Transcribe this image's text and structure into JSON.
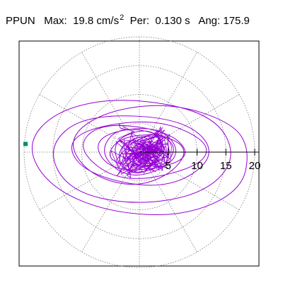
{
  "header": {
    "station": "PPUN",
    "max_label": "Max:",
    "max_value": "19.8 cm/s",
    "max_unit_exp": "2",
    "per_label": "Per:",
    "per_value": "0.130 s",
    "ang_label": "Ang:",
    "ang_value": "175.9"
  },
  "chart_data": {
    "type": "line",
    "subtype": "polar-particle-motion",
    "radial_ticks": [
      "5",
      "10",
      "15",
      "20"
    ],
    "radial_tick_values": [
      5,
      10,
      15,
      20
    ],
    "r_max": 20,
    "angular_grid_step_deg": 30,
    "grid": true,
    "peak_marker": {
      "radius": 19.8,
      "angle_deg": 175.9
    },
    "path_xy": [
      [
        0,
        0
      ],
      [
        1.6,
        0.8
      ],
      [
        -2.4,
        2.2
      ],
      [
        0.9,
        -2.8
      ],
      [
        -1.8,
        -1.3
      ],
      [
        2.9,
        1.7
      ],
      [
        -0.6,
        3.1
      ],
      [
        -3.2,
        -0.4
      ],
      [
        1.2,
        -3.4
      ],
      [
        3.6,
        0.5
      ],
      [
        -2.1,
        2.7
      ],
      [
        -4.2,
        -1.6
      ],
      [
        0.3,
        -4.6
      ],
      [
        4.8,
        1.1
      ],
      [
        1.5,
        4.4
      ],
      [
        -5.1,
        1.8
      ],
      [
        -2.6,
        -4.2
      ],
      [
        5.3,
        -2.2
      ],
      [
        6.4,
        2.3
      ],
      [
        -3.5,
        4.8
      ],
      [
        -7.2,
        -0.3
      ],
      [
        -1.2,
        -5.1
      ],
      [
        7.8,
        -0.9
      ],
      [
        3.4,
        4.9
      ],
      [
        -8.6,
        2.7
      ],
      [
        -4.8,
        -3.9
      ],
      [
        9.2,
        -1.7
      ],
      [
        6.1,
        3.4
      ],
      [
        -6.6,
        5.3
      ],
      [
        -11.2,
        0.6
      ],
      [
        -3.1,
        -5.6
      ],
      [
        10.6,
        -2.6
      ],
      [
        12.4,
        1.8
      ],
      [
        2.2,
        6.1
      ],
      [
        -12.8,
        3.2
      ],
      [
        -10.3,
        -3.6
      ],
      [
        4.6,
        -6.8
      ],
      [
        13.9,
        -0.6
      ],
      [
        7.8,
        5.9
      ],
      [
        -9.4,
        6.6
      ],
      [
        -16.1,
        0.9
      ],
      [
        -12.4,
        -6.7
      ],
      [
        -0.8,
        -9.3
      ],
      [
        11.4,
        -7.2
      ],
      [
        17.1,
        -0.8
      ],
      [
        12.6,
        6.8
      ],
      [
        -2.6,
        9.6
      ],
      [
        -14.2,
        7.4
      ],
      [
        -19.75,
        1.37
      ],
      [
        -15.8,
        -5.9
      ],
      [
        -5.7,
        -10.4
      ],
      [
        7.6,
        -11.2
      ],
      [
        17.6,
        -6.8
      ],
      [
        19.2,
        0.3
      ],
      [
        16.2,
        5.1
      ],
      [
        5.4,
        8.6
      ],
      [
        -6.1,
        7.1
      ],
      [
        -12.6,
        2.3
      ],
      [
        -9.1,
        -3.7
      ],
      [
        -1.1,
        -6.2
      ],
      [
        5.6,
        -3.8
      ],
      [
        8.7,
        0.7
      ],
      [
        3.3,
        3.3
      ],
      [
        -3.6,
        2.5
      ],
      [
        -5.9,
        -1.1
      ],
      [
        -0.8,
        -2.9
      ],
      [
        3.1,
        -0.6
      ],
      [
        1.4,
        1.7
      ],
      [
        -1.5,
        0.9
      ],
      [
        -0.7,
        -1.2
      ],
      [
        0.6,
        -0.5
      ],
      [
        0,
        0
      ]
    ],
    "cloud_r": 3.4,
    "cloud_count": 260,
    "colors": {
      "trace": "#9400D3",
      "marker": "#008B74",
      "grid": "#7a7a7a",
      "axis": "#000000",
      "frame": "#000000"
    }
  }
}
